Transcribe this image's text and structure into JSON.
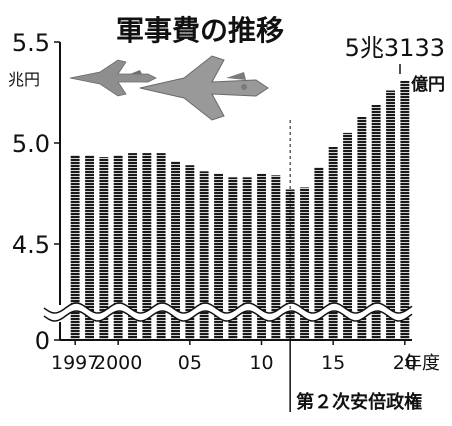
{
  "chart_data": {
    "type": "bar",
    "title": "軍事費の推移",
    "y_unit_label": "兆円",
    "annotation_value": "5兆3133",
    "annotation_unit": "億円",
    "period_label": "第２次安倍政権",
    "period_start_year": 2012.5,
    "x_tick_labels": [
      {
        "year": 1997,
        "label": "1997"
      },
      {
        "year": 2000,
        "label": "2000"
      },
      {
        "year": 2005,
        "label": "05"
      },
      {
        "year": 2010,
        "label": "10"
      },
      {
        "year": 2015,
        "label": "15"
      },
      {
        "year": 2020,
        "label": "20"
      }
    ],
    "x_unit_label": "年度",
    "y_ticks": [
      {
        "value": 5.5,
        "label": "5.5"
      },
      {
        "value": 5.0,
        "label": "5.0"
      },
      {
        "value": 4.5,
        "label": "4.5"
      },
      {
        "value": 0,
        "label": "0"
      }
    ],
    "ylim": [
      4.2,
      5.5
    ],
    "axis_break": true,
    "grid": false,
    "categories": [
      1997,
      1998,
      1999,
      2000,
      2001,
      2002,
      2003,
      2004,
      2005,
      2006,
      2007,
      2008,
      2009,
      2010,
      2011,
      2012,
      2013,
      2014,
      2015,
      2016,
      2017,
      2018,
      2019,
      2020
    ],
    "values": [
      4.94,
      4.94,
      4.93,
      4.94,
      4.95,
      4.95,
      4.95,
      4.91,
      4.89,
      4.86,
      4.85,
      4.83,
      4.83,
      4.85,
      4.84,
      4.77,
      4.78,
      4.88,
      4.98,
      5.05,
      5.13,
      5.19,
      5.26,
      5.31
    ],
    "colors": {
      "bar": "#1a1a1a",
      "axis": "#111111",
      "stripe": "#ffffff"
    }
  }
}
